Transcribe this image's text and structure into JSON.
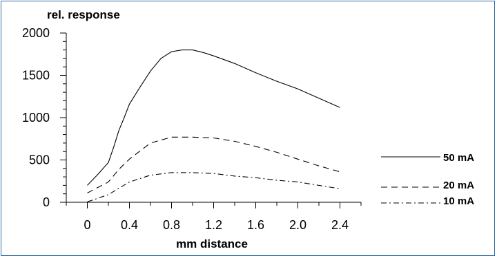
{
  "chart_data": {
    "type": "line",
    "ylabel": "rel. response",
    "xlabel": "mm distance",
    "xlim": [
      -0.2,
      2.6
    ],
    "ylim": [
      0,
      2000
    ],
    "x_ticks": [
      0,
      0.4,
      0.8,
      1.2,
      1.6,
      2.0,
      2.4
    ],
    "x_tick_labels": [
      "0",
      "0.4",
      "0.8",
      "1.2",
      "1.6",
      "2.0",
      "2.4"
    ],
    "y_ticks": [
      0,
      500,
      1000,
      1500,
      2000
    ],
    "y_tick_labels": [
      "0",
      "500",
      "1000",
      "1500",
      "2000"
    ],
    "grid": false,
    "legend_position": "right",
    "series": [
      {
        "name": "50 mA",
        "style": "solid",
        "x": [
          0,
          0.1,
          0.2,
          0.25,
          0.3,
          0.35,
          0.4,
          0.5,
          0.6,
          0.7,
          0.8,
          0.9,
          1.0,
          1.1,
          1.2,
          1.4,
          1.6,
          1.8,
          2.0,
          2.2,
          2.4
        ],
        "values": [
          200,
          330,
          470,
          650,
          850,
          1000,
          1160,
          1360,
          1550,
          1700,
          1780,
          1800,
          1800,
          1770,
          1730,
          1640,
          1530,
          1430,
          1340,
          1230,
          1120
        ]
      },
      {
        "name": "20 mA",
        "style": "dashed",
        "x": [
          0,
          0.2,
          0.3,
          0.4,
          0.6,
          0.8,
          1.0,
          1.2,
          1.4,
          1.6,
          1.8,
          2.0,
          2.2,
          2.4
        ],
        "values": [
          110,
          240,
          390,
          510,
          700,
          770,
          770,
          760,
          720,
          660,
          590,
          510,
          430,
          360
        ]
      },
      {
        "name": "10 mA",
        "style": "dash-dot",
        "x": [
          0,
          0.2,
          0.4,
          0.6,
          0.8,
          1.0,
          1.2,
          1.4,
          1.6,
          1.8,
          2.0,
          2.2,
          2.4
        ],
        "values": [
          5,
          90,
          240,
          320,
          350,
          350,
          340,
          310,
          290,
          260,
          240,
          200,
          160
        ]
      }
    ]
  }
}
